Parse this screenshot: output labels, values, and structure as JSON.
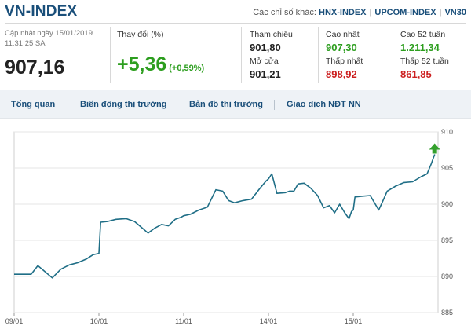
{
  "header": {
    "title": "VN-INDEX",
    "other_label": "Các chỉ số khác:",
    "links": [
      "HNX-INDEX",
      "UPCOM-INDEX",
      "VN30"
    ]
  },
  "quote": {
    "updated_line1": "Cập nhật ngày 15/01/2019",
    "updated_line2": "11:31:25 SA",
    "price": "907,16",
    "change_label": "Thay đổi (%)",
    "change": "+5,36",
    "change_pct": "(+0,59%)"
  },
  "stats": {
    "ref_label": "Tham chiếu",
    "ref_value": "901,80",
    "high_label": "Cao nhất",
    "high_value": "907,30",
    "high52_label": "Cao 52 tuần",
    "high52_value": "1.211,34",
    "open_label": "Mở cửa",
    "open_value": "901,21",
    "low_label": "Thấp nhất",
    "low_value": "898,92",
    "low52_label": "Thấp 52 tuần",
    "low52_value": "861,85"
  },
  "tabs": [
    "Tổng quan",
    "Biến động thị trường",
    "Bản đồ thị trường",
    "Giao dịch NĐT NN"
  ],
  "colors": {
    "line": "#1f6e86",
    "up_marker": "#33a02c",
    "positive": "#2d9e1f",
    "negative": "#cc1f1f",
    "title": "#1a4f7a"
  },
  "chart_data": {
    "type": "line",
    "x_ticks": [
      "09/01",
      "10/01",
      "11/01",
      "14/01",
      "15/01"
    ],
    "y_ticks": [
      885,
      890,
      895,
      900,
      905,
      910
    ],
    "ylim": [
      885,
      910
    ],
    "grid": true,
    "marker": "up-arrow",
    "series": [
      {
        "values": [
          [
            0,
            890.3
          ],
          [
            0.2,
            890.3
          ],
          [
            0.22,
            890.6
          ],
          [
            0.28,
            891.5
          ],
          [
            0.35,
            890.8
          ],
          [
            0.45,
            889.8
          ],
          [
            0.55,
            891.0
          ],
          [
            0.65,
            891.6
          ],
          [
            0.75,
            891.9
          ],
          [
            0.85,
            892.4
          ],
          [
            0.93,
            893.0
          ],
          [
            1.0,
            893.2
          ],
          [
            1.02,
            897.5
          ],
          [
            1.1,
            897.6
          ],
          [
            1.2,
            897.9
          ],
          [
            1.32,
            898.0
          ],
          [
            1.42,
            897.6
          ],
          [
            1.5,
            896.8
          ],
          [
            1.58,
            896.0
          ],
          [
            1.66,
            896.7
          ],
          [
            1.74,
            897.2
          ],
          [
            1.82,
            897.0
          ],
          [
            1.9,
            897.9
          ],
          [
            1.97,
            898.2
          ],
          [
            2.0,
            898.4
          ],
          [
            2.08,
            898.6
          ],
          [
            2.18,
            899.2
          ],
          [
            2.28,
            899.6
          ],
          [
            2.38,
            902.0
          ],
          [
            2.46,
            901.8
          ],
          [
            2.53,
            900.5
          ],
          [
            2.6,
            900.2
          ],
          [
            2.7,
            900.5
          ],
          [
            2.8,
            900.7
          ],
          [
            2.9,
            902.2
          ],
          [
            2.97,
            903.2
          ],
          [
            3.0,
            903.5
          ],
          [
            3.04,
            904.2
          ],
          [
            3.1,
            901.5
          ],
          [
            3.2,
            901.6
          ],
          [
            3.25,
            901.8
          ],
          [
            3.3,
            901.8
          ],
          [
            3.35,
            902.8
          ],
          [
            3.42,
            902.9
          ],
          [
            3.5,
            902.2
          ],
          [
            3.58,
            901.2
          ],
          [
            3.65,
            899.5
          ],
          [
            3.72,
            899.8
          ],
          [
            3.78,
            898.8
          ],
          [
            3.84,
            900.0
          ],
          [
            3.9,
            898.8
          ],
          [
            3.95,
            898.0
          ],
          [
            3.98,
            899.0
          ],
          [
            4.0,
            899.2
          ],
          [
            4.02,
            901.0
          ],
          [
            4.1,
            901.1
          ],
          [
            4.2,
            901.2
          ],
          [
            4.26,
            900.0
          ],
          [
            4.3,
            899.2
          ],
          [
            4.34,
            900.2
          ],
          [
            4.4,
            901.8
          ],
          [
            4.5,
            902.5
          ],
          [
            4.6,
            903.0
          ],
          [
            4.7,
            903.1
          ],
          [
            4.8,
            903.8
          ],
          [
            4.87,
            904.2
          ],
          [
            4.92,
            905.6
          ],
          [
            4.96,
            906.9
          ]
        ]
      }
    ]
  }
}
